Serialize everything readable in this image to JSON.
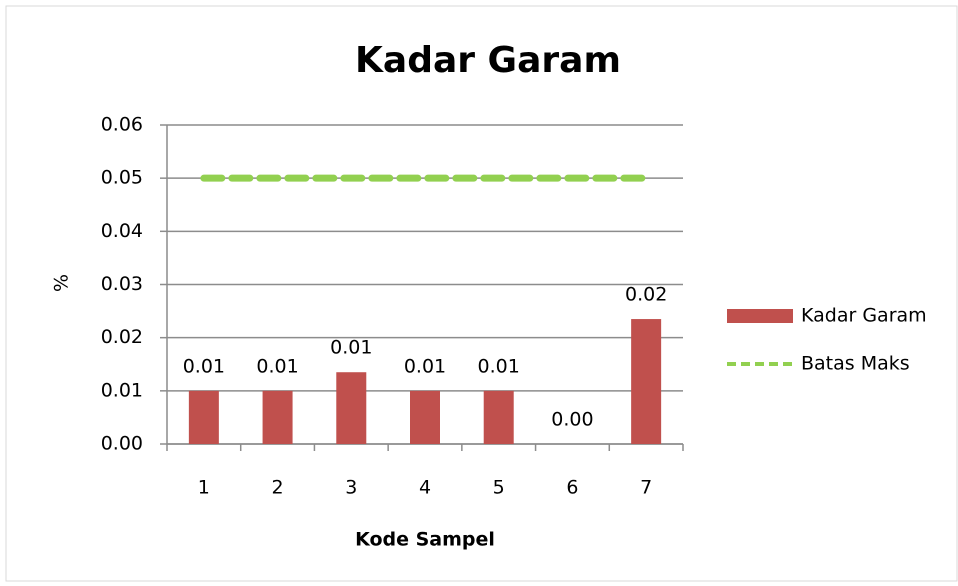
{
  "chart_data": {
    "type": "bar",
    "title": "Kadar Garam",
    "x_label": "Kode Sampel",
    "y_label": "%",
    "categories": [
      "1",
      "2",
      "3",
      "4",
      "5",
      "6",
      "7"
    ],
    "series": [
      {
        "name": "Kadar Garam",
        "type": "bar",
        "color": "#c0504d",
        "values": [
          0.01,
          0.01,
          0.0135,
          0.01,
          0.01,
          0.0,
          0.0235
        ],
        "value_labels": [
          "0.01",
          "0.01",
          "0.01",
          "0.01",
          "0.01",
          "0.00",
          "0.02"
        ]
      },
      {
        "name": "Batas Maks",
        "type": "line",
        "color": "#92d050",
        "values": [
          0.05,
          0.05,
          0.05,
          0.05,
          0.05,
          0.05,
          0.05
        ]
      }
    ],
    "ylim": [
      0,
      0.06
    ],
    "yticks": [
      {
        "value": 0,
        "label": "0.00"
      },
      0.01,
      0.02,
      0.03,
      0.04,
      0.05,
      0.06
    ],
    "grid": true,
    "legend": "right"
  }
}
